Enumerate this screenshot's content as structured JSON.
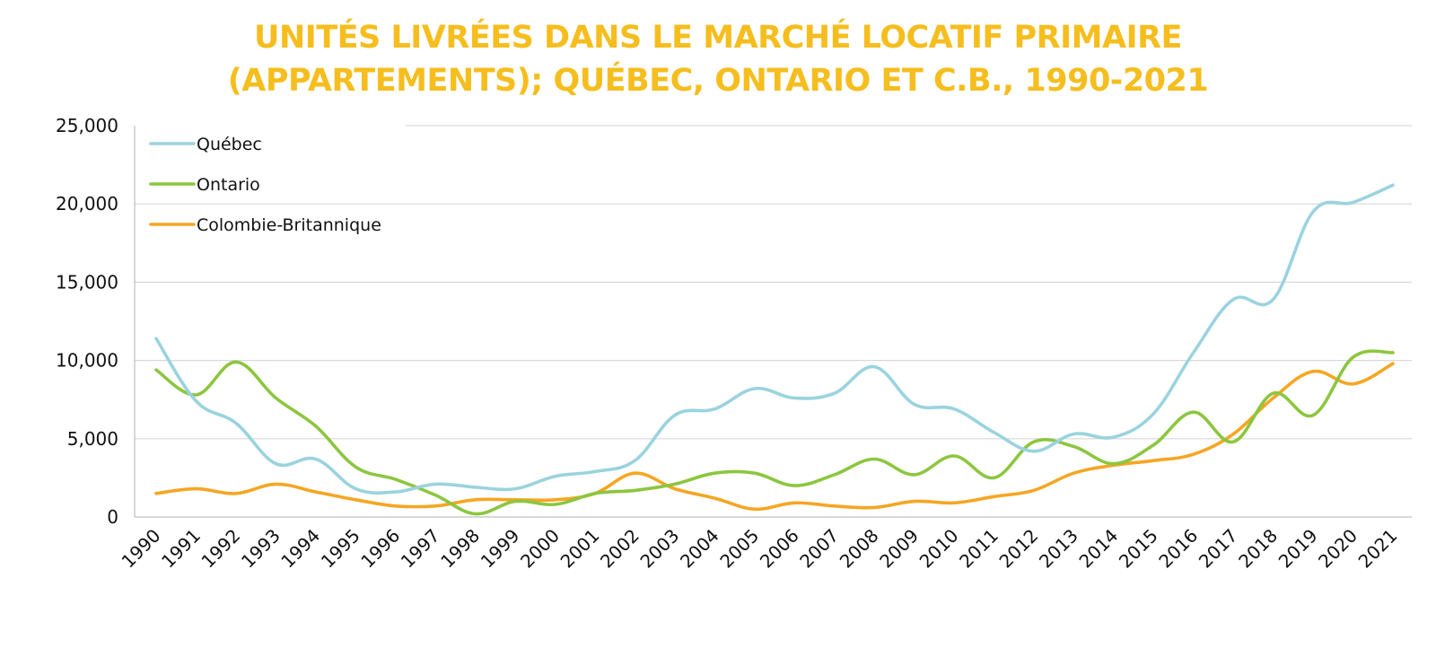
{
  "title_line1": "UNITÉS LIVRÉES DANS LE MARCHÉ LOCATIF PRIMAIRE",
  "title_line2": "(APPARTEMENTS); QUÉBEC, ONTARIO ET C.B., 1990-2021",
  "chart_data": {
    "type": "line",
    "title": "UNITÉS LIVRÉES DANS LE MARCHÉ LOCATIF PRIMAIRE (APPARTEMENTS); QUÉBEC, ONTARIO ET C.B., 1990-2021",
    "xlabel": "",
    "ylabel": "",
    "ylim": [
      0,
      25000
    ],
    "yticks": [
      0,
      5000,
      10000,
      15000,
      20000,
      25000
    ],
    "ytick_labels": [
      "0",
      "5,000",
      "10,000",
      "15,000",
      "20,000",
      "25,000"
    ],
    "grid": true,
    "legend_position": "top-left",
    "categories": [
      "1990",
      "1991",
      "1992",
      "1993",
      "1994",
      "1995",
      "1996",
      "1997",
      "1998",
      "1999",
      "2000",
      "2001",
      "2002",
      "2003",
      "2004",
      "2005",
      "2006",
      "2007",
      "2008",
      "2009",
      "2010",
      "2011",
      "2012",
      "2013",
      "2014",
      "2015",
      "2016",
      "2017",
      "2018",
      "2019",
      "2020",
      "2021"
    ],
    "series": [
      {
        "name": "Québec",
        "color": "#9AD3DE",
        "values": [
          11400,
          7400,
          6000,
          3400,
          3700,
          1800,
          1600,
          2100,
          1900,
          1800,
          2600,
          2900,
          3600,
          6500,
          6900,
          8200,
          7600,
          7900,
          9600,
          7200,
          6900,
          5400,
          4200,
          5300,
          5100,
          6600,
          10500,
          13900,
          13900,
          19500,
          20100,
          21200
        ]
      },
      {
        "name": "Ontario",
        "color": "#8CC63F",
        "values": [
          9400,
          7800,
          9900,
          7600,
          5800,
          3200,
          2400,
          1400,
          200,
          1000,
          800,
          1500,
          1700,
          2100,
          2800,
          2800,
          2000,
          2700,
          3700,
          2700,
          3900,
          2500,
          4800,
          4500,
          3400,
          4600,
          6700,
          4800,
          7900,
          6500,
          10200,
          10500
        ]
      },
      {
        "name": "Colombie-Britannique",
        "color": "#F5A623",
        "values": [
          1500,
          1800,
          1500,
          2100,
          1600,
          1100,
          700,
          700,
          1100,
          1100,
          1100,
          1500,
          2800,
          1800,
          1200,
          500,
          900,
          700,
          600,
          1000,
          900,
          1300,
          1700,
          2800,
          3300,
          3600,
          4000,
          5300,
          7600,
          9300,
          8500,
          9800
        ]
      }
    ]
  }
}
